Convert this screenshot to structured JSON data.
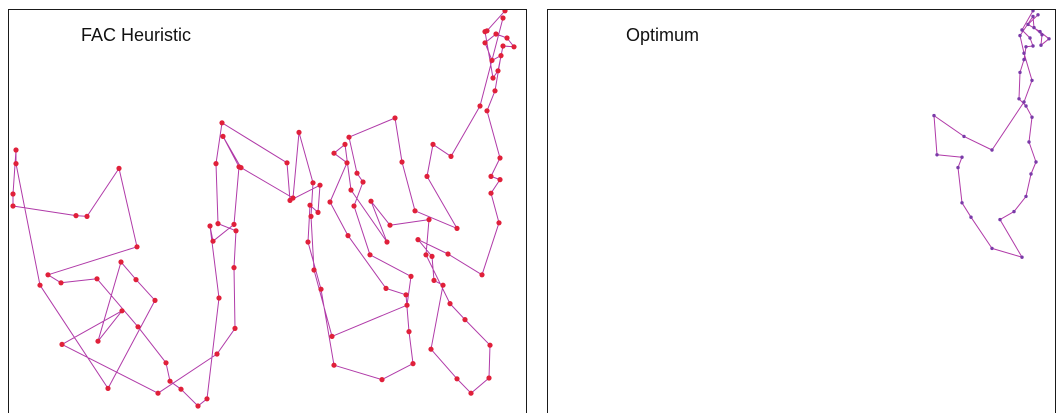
{
  "panels": [
    {
      "title": "FAC Heuristic",
      "node_color": "#e0203a",
      "edge_color": "#b03aa8",
      "tour": [
        [
          496,
          1
        ],
        [
          478,
          26
        ],
        [
          476,
          27
        ],
        [
          484,
          85
        ],
        [
          489,
          76
        ],
        [
          494,
          45
        ],
        [
          505,
          46
        ],
        [
          498,
          35
        ],
        [
          487,
          30
        ],
        [
          476,
          41
        ],
        [
          483,
          63
        ],
        [
          492,
          57
        ],
        [
          486,
          101
        ],
        [
          478,
          126
        ],
        [
          491,
          185
        ],
        [
          482,
          208
        ],
        [
          491,
          212
        ],
        [
          482,
          229
        ],
        [
          490,
          266
        ],
        [
          473,
          331
        ],
        [
          439,
          305
        ],
        [
          409,
          287
        ],
        [
          423,
          308
        ],
        [
          425,
          338
        ],
        [
          434,
          344
        ],
        [
          422,
          424
        ],
        [
          448,
          461
        ],
        [
          462,
          479
        ],
        [
          480,
          460
        ],
        [
          481,
          419
        ],
        [
          456,
          387
        ],
        [
          441,
          367
        ],
        [
          417,
          306
        ],
        [
          420,
          262
        ],
        [
          381,
          269
        ],
        [
          362,
          239
        ],
        [
          378,
          290
        ],
        [
          342,
          225
        ],
        [
          336,
          168
        ],
        [
          325,
          179
        ],
        [
          338,
          191
        ],
        [
          321,
          240
        ],
        [
          339,
          282
        ],
        [
          377,
          348
        ],
        [
          397,
          356
        ],
        [
          400,
          402
        ],
        [
          404,
          442
        ],
        [
          373,
          462
        ],
        [
          325,
          444
        ],
        [
          312,
          349
        ],
        [
          299,
          290
        ],
        [
          301,
          244
        ],
        [
          309,
          253
        ],
        [
          311,
          219
        ],
        [
          281,
          238
        ],
        [
          278,
          191
        ],
        [
          213,
          141
        ],
        [
          207,
          192
        ],
        [
          209,
          267
        ],
        [
          227,
          276
        ],
        [
          225,
          322
        ],
        [
          226,
          398
        ],
        [
          208,
          430
        ],
        [
          149,
          479
        ],
        [
          53,
          418
        ],
        [
          113,
          376
        ],
        [
          89,
          414
        ],
        [
          112,
          315
        ],
        [
          127,
          337
        ],
        [
          146,
          363
        ],
        [
          99,
          473
        ],
        [
          31,
          344
        ],
        [
          7,
          192
        ],
        [
          7,
          175
        ],
        [
          4,
          230
        ],
        [
          4,
          245
        ],
        [
          67,
          257
        ],
        [
          78,
          258
        ],
        [
          110,
          198
        ],
        [
          128,
          296
        ],
        [
          39,
          331
        ],
        [
          52,
          341
        ],
        [
          88,
          336
        ],
        [
          129,
          396
        ],
        [
          157,
          441
        ],
        [
          161,
          464
        ],
        [
          172,
          474
        ],
        [
          189,
          495
        ],
        [
          198,
          486
        ],
        [
          210,
          360
        ],
        [
          201,
          270
        ],
        [
          204,
          289
        ],
        [
          225,
          268
        ],
        [
          230,
          196
        ],
        [
          214,
          158
        ],
        [
          232,
          197
        ],
        [
          284,
          235
        ],
        [
          290,
          153
        ],
        [
          304,
          216
        ],
        [
          302,
          258
        ],
        [
          305,
          325
        ],
        [
          323,
          408
        ],
        [
          398,
          369
        ],
        [
          402,
          333
        ],
        [
          361,
          306
        ],
        [
          345,
          245
        ],
        [
          354,
          215
        ],
        [
          348,
          204
        ],
        [
          340,
          159
        ],
        [
          386,
          135
        ],
        [
          393,
          190
        ],
        [
          406,
          251
        ],
        [
          448,
          273
        ],
        [
          418,
          208
        ],
        [
          424,
          168
        ],
        [
          442,
          183
        ],
        [
          471,
          120
        ],
        [
          494,
          10
        ]
      ]
    },
    {
      "title": "Optimum",
      "node_color": "#7a3aa8",
      "edge_color": "#b03aa8",
      "tour": [
        [
          485,
          1
        ],
        [
          474,
          25
        ],
        [
          482,
          35
        ],
        [
          485,
          45
        ],
        [
          478,
          46
        ],
        [
          476,
          62
        ],
        [
          472,
          78
        ],
        [
          471,
          111
        ],
        [
          478,
          120
        ],
        [
          484,
          134
        ],
        [
          481,
          165
        ],
        [
          488,
          190
        ],
        [
          483,
          205
        ],
        [
          478,
          233
        ],
        [
          466,
          252
        ],
        [
          452,
          262
        ],
        [
          474,
          309
        ],
        [
          444,
          298
        ],
        [
          423,
          259
        ],
        [
          414,
          241
        ],
        [
          410,
          197
        ],
        [
          414,
          184
        ],
        [
          389,
          181
        ],
        [
          386,
          132
        ],
        [
          416,
          158
        ],
        [
          444,
          175
        ],
        [
          476,
          115
        ],
        [
          484,
          88
        ],
        [
          476,
          54
        ],
        [
          472,
          32
        ],
        [
          485,
          8
        ],
        [
          486,
          22
        ],
        [
          494,
          31
        ],
        [
          493,
          44
        ],
        [
          501,
          36
        ],
        [
          492,
          27
        ],
        [
          480,
          18
        ],
        [
          490,
          6
        ]
      ]
    }
  ]
}
